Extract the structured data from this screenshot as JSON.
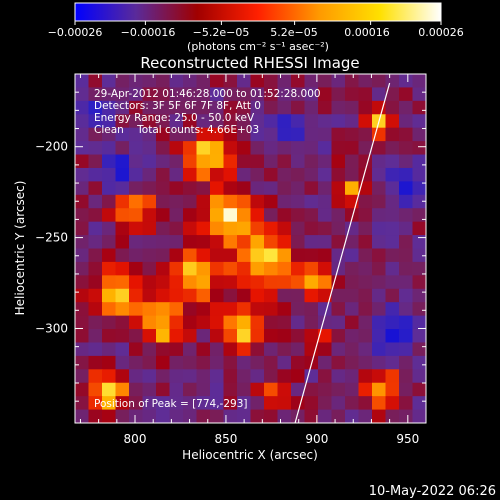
{
  "chart_data": {
    "type": "heatmap",
    "title": "Reconstructed RHESSI Image",
    "xlabel": "Heliocentric X (arcsec)",
    "ylabel": "Heliocentric Y (arcsec)",
    "xlim": [
      767,
      960
    ],
    "ylim": [
      -352,
      -160
    ],
    "x_ticks": [
      800,
      850,
      900,
      950
    ],
    "y_ticks": [
      -200,
      -250,
      -300
    ],
    "y_tick_labels": [
      "−200",
      "−250",
      "−300"
    ],
    "colorbar": {
      "range": [
        -0.00026,
        0.00026
      ],
      "tick_values": [
        -0.00026,
        -0.00016,
        -5.2e-05,
        5.2e-05,
        0.00016,
        0.00026
      ],
      "tick_labels": [
        "−0.00026",
        "−0.00016",
        "−5.2e−05",
        "5.2e−05",
        "0.00016",
        "0.00026"
      ],
      "unit_label": "(photons cm⁻² s⁻¹ asec⁻²)",
      "colors": [
        "#0000ff",
        "#5a2a9a",
        "#a00000",
        "#ff2000",
        "#ff9900",
        "#ffe000",
        "#ffffff"
      ]
    },
    "annotations": [
      "29-Apr-2012 01:46:28.000 to 01:52:28.000",
      "Detectors: 3F 5F 6F 7F 8F, Att 0",
      "Energy Range: 25.0 - 50.0 keV",
      "Clean    Total counts: 4.66E+03"
    ],
    "peak_label": "Position of Peak = [774,-293]",
    "limb_line": {
      "x": [
        888,
        940
      ],
      "y": [
        -352,
        -165
      ]
    },
    "grid": false,
    "timestamp": "10-May-2022 06:26",
    "heatmap": {
      "grid_size": [
        26,
        26
      ],
      "blobs": [
        {
          "x": 840,
          "y": -205,
          "sigma": 9,
          "amp": 0.85
        },
        {
          "x": 800,
          "y": -232,
          "sigma": 8,
          "amp": 0.8
        },
        {
          "x": 850,
          "y": -238,
          "sigma": 10,
          "amp": 0.92
        },
        {
          "x": 870,
          "y": -262,
          "sigma": 11,
          "amp": 1.0
        },
        {
          "x": 832,
          "y": -270,
          "sigma": 10,
          "amp": 0.95
        },
        {
          "x": 790,
          "y": -280,
          "sigma": 9,
          "amp": 0.9
        },
        {
          "x": 815,
          "y": -298,
          "sigma": 9,
          "amp": 0.85
        },
        {
          "x": 858,
          "y": -300,
          "sigma": 9,
          "amp": 0.85
        },
        {
          "x": 898,
          "y": -272,
          "sigma": 7,
          "amp": 0.75
        },
        {
          "x": 920,
          "y": -225,
          "sigma": 6,
          "amp": 0.7
        },
        {
          "x": 935,
          "y": -185,
          "sigma": 6,
          "amp": 0.8
        },
        {
          "x": 910,
          "y": -210,
          "sigma": 6,
          "amp": 0.55
        },
        {
          "x": 785,
          "y": -335,
          "sigma": 8,
          "amp": 0.85
        },
        {
          "x": 878,
          "y": -333,
          "sigma": 6,
          "amp": 0.55
        },
        {
          "x": 935,
          "y": -333,
          "sigma": 7,
          "amp": 0.8
        },
        {
          "x": 900,
          "y": -308,
          "sigma": 6,
          "amp": 0.5
        }
      ],
      "cold_spots": [
        {
          "x": 793,
          "y": -215,
          "sigma": 7,
          "amp": 0.7
        },
        {
          "x": 908,
          "y": -212,
          "sigma": 7,
          "amp": 0.6
        },
        {
          "x": 950,
          "y": -222,
          "sigma": 7,
          "amp": 0.7
        },
        {
          "x": 942,
          "y": -303,
          "sigma": 8,
          "amp": 0.8
        },
        {
          "x": 885,
          "y": -190,
          "sigma": 6,
          "amp": 0.5
        },
        {
          "x": 780,
          "y": -182,
          "sigma": 6,
          "amp": 0.4
        }
      ]
    }
  }
}
